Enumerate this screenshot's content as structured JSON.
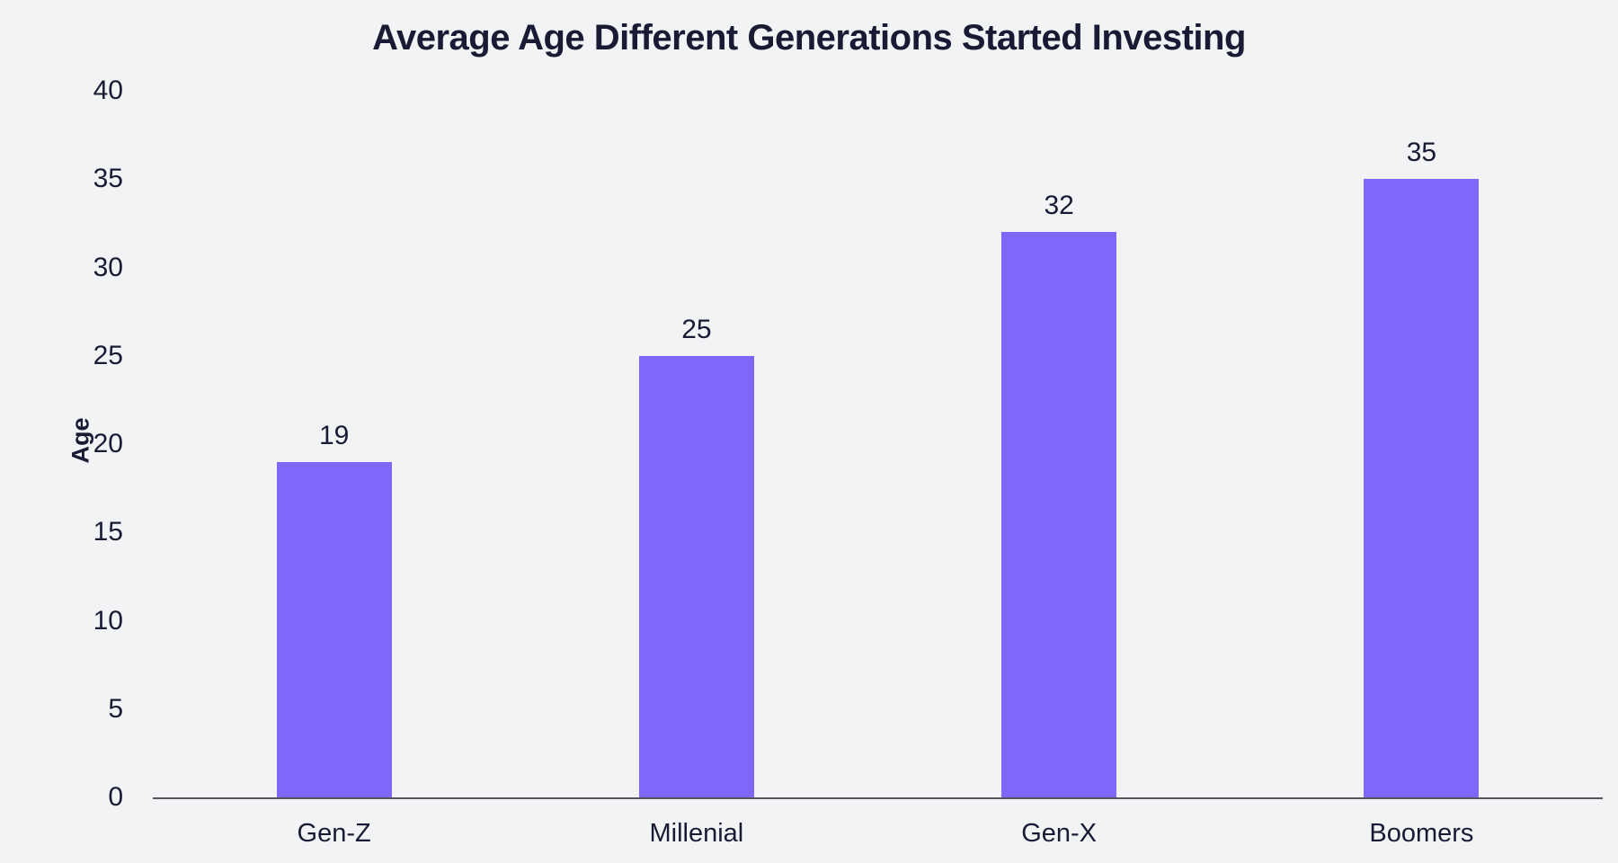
{
  "chart_data": {
    "type": "bar",
    "title": "Average Age Different Generations Started Investing",
    "categories": [
      "Gen-Z",
      "Millenial",
      "Gen-X",
      "Boomers"
    ],
    "values": [
      19,
      25,
      32,
      35
    ],
    "xlabel": "",
    "ylabel": "Age",
    "ylim": [
      0,
      40
    ],
    "yticks": [
      0,
      5,
      10,
      15,
      20,
      25,
      30,
      35,
      40
    ],
    "grid": false,
    "legend": false,
    "colors": {
      "bar": "#8166FB",
      "background": "#F2F3F5",
      "text": "#1A1A35",
      "axis_line": "#555562"
    }
  }
}
